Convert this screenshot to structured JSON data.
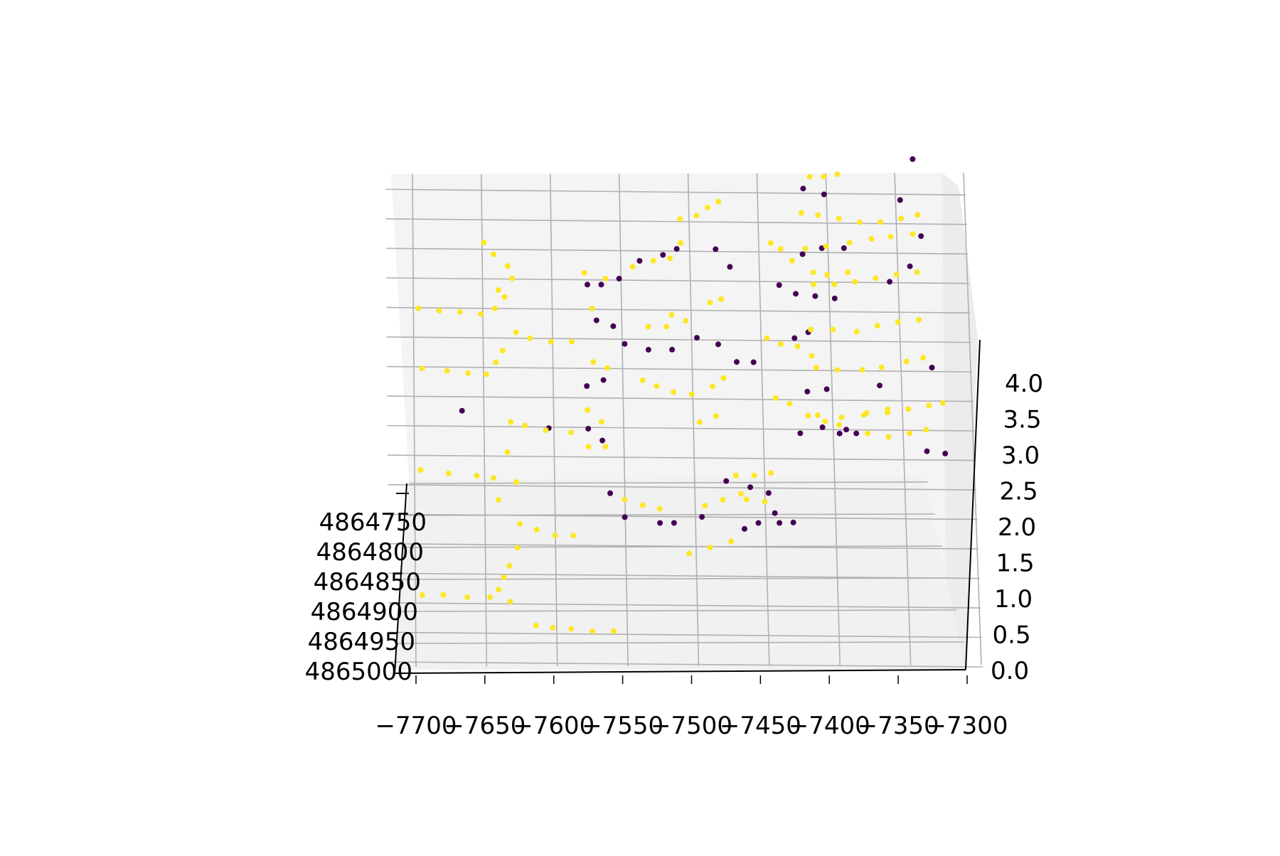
{
  "chart_data": {
    "type": "scatter",
    "projection": "3d",
    "title": "",
    "xlabel": "",
    "ylabel": "",
    "zlabel": "",
    "xlim": [
      -7700,
      -7300
    ],
    "ylim": [
      4864750,
      4865000
    ],
    "zlim": [
      0.0,
      4.2
    ],
    "x_ticks": [
      "−7700",
      "−7650",
      "−7600",
      "−7550",
      "−7500",
      "−7450",
      "−7400",
      "−7350",
      "−7300"
    ],
    "y_ticks": [
      "4864750",
      "4864800",
      "4864850",
      "4864900",
      "4864950",
      "4865000"
    ],
    "z_ticks": [
      "0.0",
      "0.5",
      "1.0",
      "1.5",
      "2.0",
      "2.5",
      "3.0",
      "3.5",
      "4.0"
    ],
    "grid": true,
    "legend": "none",
    "colors": {
      "class_0": "#440154",
      "class_1": "#fde725",
      "pane": "#f4f4f4",
      "grid": "#b0b0b0"
    },
    "series": [
      {
        "values": [
          [
            -7558,
            4864790,
            3.2
          ],
          [
            -7548,
            4864790,
            3.2
          ],
          [
            -7535,
            4864790,
            3.25
          ],
          [
            -7552,
            4864800,
            2.9
          ],
          [
            -7540,
            4864800,
            2.85
          ],
          [
            -7532,
            4864800,
            2.7
          ],
          [
            -7515,
            4864800,
            2.65
          ],
          [
            -7498,
            4864800,
            2.65
          ],
          [
            -7480,
            4864800,
            2.75
          ],
          [
            -7503,
            4864790,
            3.45
          ],
          [
            -7493,
            4864790,
            3.5
          ],
          [
            -7520,
            4864790,
            3.4
          ],
          [
            -7560,
            4864820,
            2.35
          ],
          [
            -7548,
            4864820,
            2.4
          ],
          [
            -7465,
            4864800,
            3.5
          ],
          [
            -7455,
            4864800,
            3.35
          ],
          [
            -7465,
            4864820,
            2.7
          ],
          [
            -7452,
            4864820,
            2.55
          ],
          [
            -7440,
            4864830,
            2.55
          ],
          [
            -7420,
            4864820,
            3.2
          ],
          [
            -7410,
            4864820,
            2.75
          ],
          [
            -7400,
            4864820,
            2.8
          ],
          [
            -7408,
            4864840,
            1.95
          ],
          [
            -7392,
            4864840,
            2.0
          ],
          [
            -7375,
            4864840,
            1.98
          ],
          [
            -7402,
            4864780,
            3.45
          ],
          [
            -7388,
            4864780,
            3.5
          ],
          [
            -7372,
            4864780,
            3.5
          ],
          [
            -7316,
            4864780,
            3.6
          ],
          [
            -7320,
            4864770,
            4.25
          ],
          [
            -7400,
            4864760,
            4.0
          ],
          [
            -7385,
            4864760,
            3.95
          ],
          [
            -7330,
            4864760,
            3.9
          ],
          [
            -7408,
            4864800,
            3.12
          ],
          [
            -7394,
            4864800,
            3.1
          ],
          [
            -7380,
            4864800,
            3.08
          ],
          [
            -7340,
            4864800,
            3.22
          ],
          [
            -7325,
            4864800,
            3.35
          ],
          [
            -7402,
            4864830,
            2.3
          ],
          [
            -7388,
            4864830,
            2.32
          ],
          [
            -7350,
            4864830,
            2.35
          ],
          [
            -7312,
            4864830,
            2.5
          ],
          [
            -7318,
            4864860,
            1.8
          ],
          [
            -7305,
            4864860,
            1.78
          ],
          [
            -7380,
            4864850,
            1.95
          ],
          [
            -7368,
            4864850,
            1.95
          ],
          [
            -7462,
            4864850,
            1.55
          ],
          [
            -7445,
            4864860,
            1.5
          ],
          [
            -7432,
            4864860,
            1.45
          ],
          [
            -7440,
            4864870,
            1.2
          ],
          [
            -7450,
            4864870,
            1.15
          ],
          [
            -7425,
            4864870,
            1.2
          ],
          [
            -7545,
            4864850,
            1.45
          ],
          [
            -7535,
            4864860,
            1.25
          ],
          [
            -7510,
            4864860,
            1.2
          ],
          [
            -7550,
            4864860,
            1.9
          ],
          [
            -7560,
            4864860,
            2.0
          ],
          [
            -7588,
            4864840,
            2.0
          ],
          [
            -7650,
            4864840,
            2.15
          ],
          [
            -7500,
            4864860,
            1.2
          ],
          [
            -7480,
            4864860,
            1.25
          ],
          [
            -7415,
            4864860,
            1.2
          ],
          [
            -7428,
            4864860,
            1.28
          ]
        ]
      },
      {
        "values": [
          [
            -7680,
            4864780,
            3.0
          ],
          [
            -7665,
            4864780,
            2.98
          ],
          [
            -7650,
            4864780,
            2.97
          ],
          [
            -7635,
            4864780,
            2.95
          ],
          [
            -7625,
            4864790,
            3.0
          ],
          [
            -7618,
            4864800,
            3.1
          ],
          [
            -7612,
            4864770,
            3.25
          ],
          [
            -7615,
            4864760,
            3.35
          ],
          [
            -7610,
            4864800,
            2.8
          ],
          [
            -7600,
            4864800,
            2.75
          ],
          [
            -7585,
            4864800,
            2.72
          ],
          [
            -7570,
            4864800,
            2.72
          ],
          [
            -7625,
            4864810,
            2.55
          ],
          [
            -7620,
            4864815,
            2.65
          ],
          [
            -7678,
            4864810,
            2.5
          ],
          [
            -7660,
            4864810,
            2.48
          ],
          [
            -7645,
            4864810,
            2.46
          ],
          [
            -7632,
            4864810,
            2.45
          ],
          [
            -7615,
            4864830,
            2.05
          ],
          [
            -7605,
            4864830,
            2.02
          ],
          [
            -7590,
            4864830,
            1.98
          ],
          [
            -7572,
            4864830,
            1.96
          ],
          [
            -7680,
            4864840,
            1.65
          ],
          [
            -7660,
            4864840,
            1.62
          ],
          [
            -7640,
            4864840,
            1.6
          ],
          [
            -7628,
            4864840,
            1.58
          ],
          [
            -7618,
            4864850,
            1.8
          ],
          [
            -7625,
            4864860,
            1.4
          ],
          [
            -7612,
            4864860,
            1.55
          ],
          [
            -7610,
            4864870,
            1.2
          ],
          [
            -7598,
            4864870,
            1.15
          ],
          [
            -7585,
            4864870,
            1.1
          ],
          [
            -7572,
            4864870,
            1.1
          ],
          [
            -7612,
            4864880,
            1.0
          ],
          [
            -7618,
            4864890,
            0.85
          ],
          [
            -7680,
            4864870,
            0.6
          ],
          [
            -7665,
            4864870,
            0.6
          ],
          [
            -7648,
            4864870,
            0.58
          ],
          [
            -7632,
            4864870,
            0.58
          ],
          [
            -7622,
            4864880,
            0.75
          ],
          [
            -7626,
            4864890,
            0.65
          ],
          [
            -7618,
            4864900,
            0.55
          ],
          [
            -7600,
            4864910,
            0.35
          ],
          [
            -7588,
            4864910,
            0.33
          ],
          [
            -7575,
            4864910,
            0.32
          ],
          [
            -7560,
            4864910,
            0.3
          ],
          [
            -7545,
            4864910,
            0.3
          ],
          [
            -7625,
            4864760,
            3.45
          ],
          [
            -7632,
            4864760,
            3.55
          ],
          [
            -7622,
            4864770,
            3.15
          ],
          [
            -7560,
            4864790,
            3.3
          ],
          [
            -7545,
            4864790,
            3.25
          ],
          [
            -7555,
            4864800,
            3.0
          ],
          [
            -7555,
            4864810,
            2.55
          ],
          [
            -7545,
            4864810,
            2.5
          ],
          [
            -7560,
            4864830,
            2.15
          ],
          [
            -7550,
            4864830,
            2.05
          ],
          [
            -7560,
            4864870,
            1.85
          ],
          [
            -7548,
            4864870,
            1.85
          ],
          [
            -7525,
            4864790,
            3.35
          ],
          [
            -7510,
            4864790,
            3.4
          ],
          [
            -7498,
            4864790,
            3.42
          ],
          [
            -7490,
            4864790,
            3.55
          ],
          [
            -7515,
            4864820,
            2.85
          ],
          [
            -7502,
            4864820,
            2.85
          ],
          [
            -7488,
            4864820,
            2.9
          ],
          [
            -7520,
            4864830,
            2.4
          ],
          [
            -7510,
            4864830,
            2.35
          ],
          [
            -7498,
            4864830,
            2.3
          ],
          [
            -7485,
            4864830,
            2.28
          ],
          [
            -7535,
            4864860,
            1.4
          ],
          [
            -7522,
            4864860,
            1.35
          ],
          [
            -7510,
            4864860,
            1.32
          ],
          [
            -7490,
            4864780,
            3.75
          ],
          [
            -7478,
            4864780,
            3.78
          ],
          [
            -7470,
            4864790,
            3.85
          ],
          [
            -7462,
            4864790,
            3.9
          ],
          [
            -7498,
            4864820,
            2.95
          ],
          [
            -7470,
            4864810,
            3.05
          ],
          [
            -7462,
            4864810,
            3.08
          ],
          [
            -7470,
            4864840,
            2.35
          ],
          [
            -7462,
            4864840,
            2.42
          ],
          [
            -7480,
            4864850,
            2.05
          ],
          [
            -7468,
            4864850,
            2.1
          ],
          [
            -7478,
            4864880,
            1.35
          ],
          [
            -7465,
            4864880,
            1.4
          ],
          [
            -7452,
            4864880,
            1.45
          ],
          [
            -7490,
            4864890,
            0.95
          ],
          [
            -7475,
            4864890,
            1.0
          ],
          [
            -7460,
            4864890,
            1.05
          ],
          [
            -7455,
            4864860,
            1.6
          ],
          [
            -7442,
            4864860,
            1.6
          ],
          [
            -7430,
            4864860,
            1.62
          ],
          [
            -7448,
            4864870,
            1.4
          ],
          [
            -7435,
            4864870,
            1.38
          ],
          [
            -7425,
            4864800,
            3.55
          ],
          [
            -7418,
            4864800,
            3.5
          ],
          [
            -7410,
            4864800,
            3.4
          ],
          [
            -7395,
            4864800,
            3.3
          ],
          [
            -7385,
            4864800,
            3.28
          ],
          [
            -7370,
            4864800,
            3.3
          ],
          [
            -7430,
            4864820,
            2.75
          ],
          [
            -7420,
            4864820,
            2.7
          ],
          [
            -7408,
            4864820,
            2.68
          ],
          [
            -7398,
            4864820,
            2.6
          ],
          [
            -7425,
            4864840,
            2.25
          ],
          [
            -7415,
            4864840,
            2.2
          ],
          [
            -7402,
            4864840,
            2.1
          ],
          [
            -7390,
            4864840,
            2.05
          ],
          [
            -7380,
            4864840,
            2.02
          ],
          [
            -7360,
            4864840,
            2.12
          ],
          [
            -7345,
            4864840,
            2.15
          ],
          [
            -7395,
            4864760,
            4.1
          ],
          [
            -7385,
            4864760,
            4.1
          ],
          [
            -7375,
            4864760,
            4.12
          ],
          [
            -7402,
            4864780,
            3.8
          ],
          [
            -7390,
            4864780,
            3.78
          ],
          [
            -7375,
            4864780,
            3.75
          ],
          [
            -7360,
            4864780,
            3.72
          ],
          [
            -7345,
            4864780,
            3.72
          ],
          [
            -7330,
            4864780,
            3.75
          ],
          [
            -7318,
            4864780,
            3.78
          ],
          [
            -7400,
            4864790,
            3.5
          ],
          [
            -7385,
            4864790,
            3.52
          ],
          [
            -7368,
            4864790,
            3.55
          ],
          [
            -7352,
            4864790,
            3.58
          ],
          [
            -7338,
            4864790,
            3.6
          ],
          [
            -7322,
            4864790,
            3.62
          ],
          [
            -7395,
            4864800,
            3.2
          ],
          [
            -7380,
            4864800,
            3.2
          ],
          [
            -7365,
            4864800,
            3.22
          ],
          [
            -7350,
            4864800,
            3.25
          ],
          [
            -7335,
            4864800,
            3.28
          ],
          [
            -7320,
            4864800,
            3.3
          ],
          [
            -7398,
            4864810,
            2.82
          ],
          [
            -7382,
            4864810,
            2.82
          ],
          [
            -7365,
            4864810,
            2.8
          ],
          [
            -7350,
            4864810,
            2.85
          ],
          [
            -7335,
            4864810,
            2.88
          ],
          [
            -7320,
            4864810,
            2.9
          ],
          [
            -7395,
            4864820,
            2.5
          ],
          [
            -7380,
            4864820,
            2.48
          ],
          [
            -7362,
            4864820,
            2.48
          ],
          [
            -7348,
            4864820,
            2.5
          ],
          [
            -7330,
            4864820,
            2.55
          ],
          [
            -7318,
            4864820,
            2.58
          ],
          [
            -7395,
            4864830,
            2.1
          ],
          [
            -7378,
            4864830,
            2.08
          ],
          [
            -7362,
            4864830,
            2.1
          ],
          [
            -7345,
            4864830,
            2.12
          ],
          [
            -7330,
            4864830,
            2.15
          ],
          [
            -7315,
            4864830,
            2.18
          ],
          [
            -7305,
            4864830,
            2.2
          ],
          [
            -7360,
            4864850,
            1.95
          ],
          [
            -7345,
            4864850,
            1.92
          ],
          [
            -7330,
            4864850,
            1.95
          ],
          [
            -7318,
            4864850,
            1.98
          ]
        ]
      }
    ]
  }
}
